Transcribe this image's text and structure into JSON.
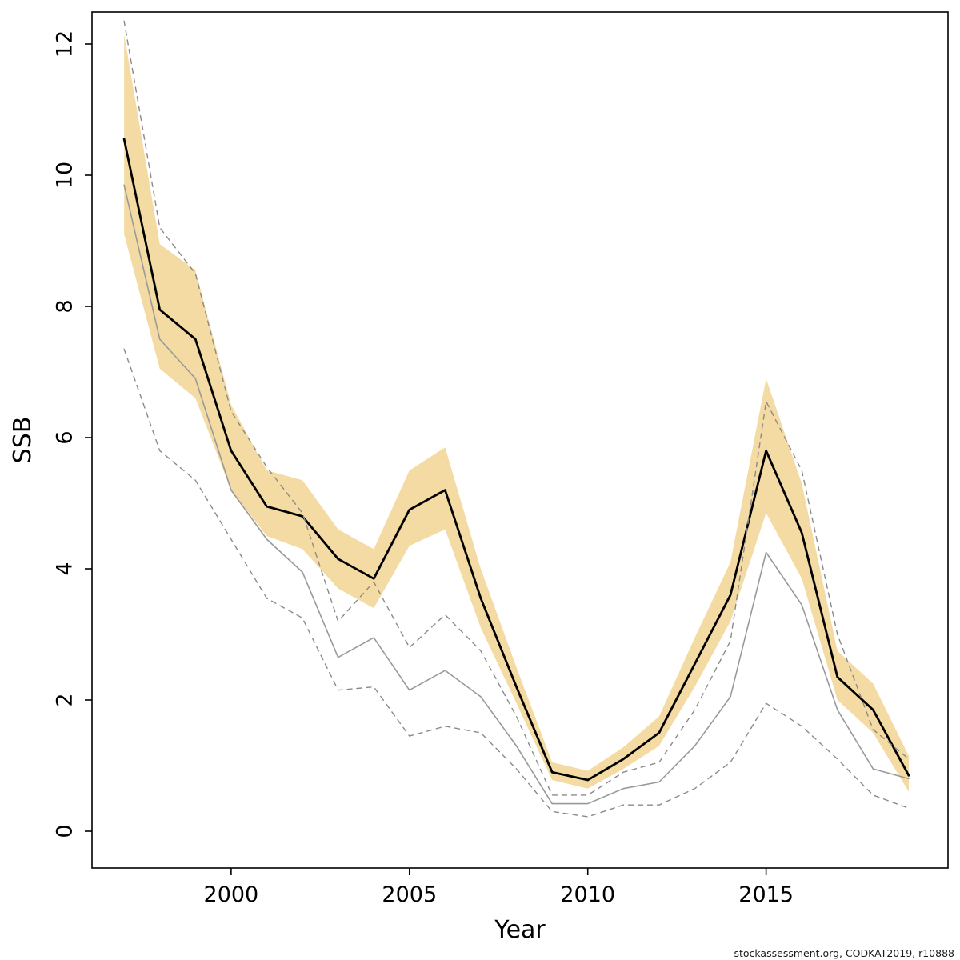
{
  "footer": {
    "credit": "stockassessment.org, CODKAT2019, r10888"
  },
  "chart_data": {
    "type": "line",
    "title": "",
    "xlabel": "Year",
    "ylabel": "SSB",
    "xlim": [
      1996.1,
      2020.1
    ],
    "ylim": [
      0,
      12
    ],
    "grid": false,
    "legend": "none",
    "x_ticks": [
      2000,
      2005,
      2010,
      2015
    ],
    "y_ticks": [
      0,
      2,
      4,
      6,
      8,
      10,
      12
    ],
    "x": [
      1997,
      1998,
      1999,
      2000,
      2001,
      2002,
      2003,
      2004,
      2005,
      2006,
      2007,
      2008,
      2009,
      2010,
      2011,
      2012,
      2013,
      2014,
      2015,
      2016,
      2017,
      2018,
      2019
    ],
    "band": {
      "name": "ssb-confidence-band",
      "fill": "#F4DBA4",
      "upper": [
        12.15,
        8.95,
        8.55,
        6.5,
        5.5,
        5.35,
        4.6,
        4.3,
        5.5,
        5.85,
        4.0,
        2.5,
        1.05,
        0.92,
        1.28,
        1.75,
        2.95,
        4.1,
        6.9,
        5.3,
        2.75,
        2.25,
        1.15
      ],
      "lower": [
        9.1,
        7.05,
        6.6,
        5.2,
        4.5,
        4.3,
        3.7,
        3.4,
        4.35,
        4.6,
        3.1,
        1.95,
        0.78,
        0.65,
        0.95,
        1.3,
        2.2,
        3.2,
        4.85,
        3.85,
        2.0,
        1.5,
        0.6
      ]
    },
    "series": [
      {
        "name": "ssb-estimate",
        "style": "solid",
        "color": "#000000",
        "width": 2.8,
        "values": [
          10.55,
          7.95,
          7.5,
          5.8,
          4.95,
          4.8,
          4.15,
          3.85,
          4.9,
          5.2,
          3.55,
          2.2,
          0.9,
          0.78,
          1.1,
          1.5,
          2.55,
          3.6,
          5.8,
          4.55,
          2.35,
          1.85,
          0.85
        ]
      },
      {
        "name": "alt-estimate",
        "style": "solid",
        "color": "#999999",
        "width": 1.6,
        "values": [
          9.85,
          7.5,
          6.9,
          5.2,
          4.45,
          3.95,
          2.65,
          2.95,
          2.15,
          2.45,
          2.05,
          1.3,
          0.42,
          0.42,
          0.65,
          0.75,
          1.3,
          2.05,
          4.25,
          3.45,
          1.85,
          0.95,
          0.8
        ]
      },
      {
        "name": "alt-upper-ci",
        "style": "dashed",
        "color": "#8a8a8a",
        "width": 1.4,
        "values": [
          12.35,
          9.2,
          8.5,
          6.4,
          5.55,
          4.85,
          3.2,
          3.8,
          2.8,
          3.3,
          2.75,
          1.75,
          0.55,
          0.55,
          0.9,
          1.05,
          1.85,
          2.9,
          6.55,
          5.5,
          3.0,
          1.55,
          1.1
        ]
      },
      {
        "name": "alt-lower-ci",
        "style": "dashed",
        "color": "#8a8a8a",
        "width": 1.4,
        "values": [
          7.35,
          5.8,
          5.35,
          4.45,
          3.55,
          3.25,
          2.15,
          2.2,
          1.45,
          1.6,
          1.5,
          0.95,
          0.3,
          0.22,
          0.4,
          0.4,
          0.65,
          1.05,
          1.95,
          1.6,
          1.1,
          0.55,
          0.35
        ]
      }
    ]
  }
}
